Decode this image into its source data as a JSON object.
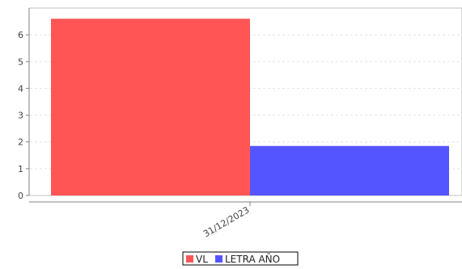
{
  "chart_data": {
    "type": "bar",
    "categories": [
      "31/12/2023"
    ],
    "series": [
      {
        "name": "VL",
        "values": [
          6.6
        ],
        "color": "#ff5555"
      },
      {
        "name": "LETRA AÑO",
        "values": [
          1.85
        ],
        "color": "#5555ff"
      }
    ],
    "yticks": [
      "0",
      "1",
      "2",
      "3",
      "4",
      "5",
      "6"
    ],
    "ylim": [
      0,
      6.9
    ],
    "grid": true,
    "legend_position": "bottom-center",
    "title": "",
    "xlabel": "",
    "ylabel": ""
  }
}
